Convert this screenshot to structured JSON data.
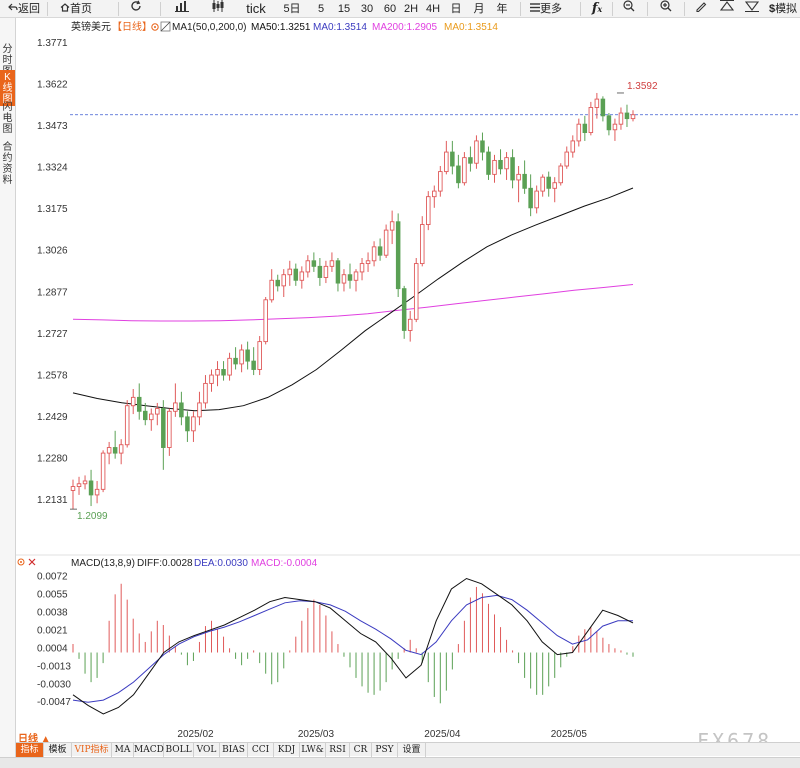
{
  "toolbar": {
    "back": "返回",
    "home": "首页",
    "tick": "tick",
    "periods": [
      "5日",
      "5",
      "15",
      "30",
      "60",
      "2H",
      "4H",
      "日",
      "月",
      "年"
    ],
    "more": "更多",
    "simulate": "模拟"
  },
  "sidebar": {
    "tabs": [
      "分时图",
      "K线图",
      "闪电图",
      "合约资料"
    ]
  },
  "legend": {
    "name": "英镑美元",
    "period": "【日线】",
    "ma_def": "MA1(50,0,200,0)",
    "ma50": "MA50:1.3251",
    "ma0a": "MA0:1.3514",
    "ma200": "MA200:1.2905",
    "ma0b": "MA0:1.3514"
  },
  "macd_legend": {
    "def": "MACD(13,8,9)",
    "diff": "DIFF:0.0028",
    "dea": "DEA:0.0030",
    "macd": "MACD:-0.0004"
  },
  "period_label": "日线 ▲",
  "indicators": [
    "指标",
    "模板",
    "VIP指标",
    "MA",
    "MACD",
    "BOLL",
    "VOL",
    "BIAS",
    "CCI",
    "KDJ",
    "LW&",
    "RSI",
    "CR",
    "PSY",
    "设置"
  ],
  "watermark": "FX678",
  "colors": {
    "up": "#e05a5a",
    "down": "#5aa054",
    "ma50": "#111111",
    "ma200": "#e040e0",
    "dea": "#3b3bc0",
    "accent": "#e9651b"
  },
  "chart_data": [
    {
      "type": "candlestick",
      "title": "英镑美元【日线】",
      "ylim": [
        1.206,
        1.38
      ],
      "yticks": [
        "1.3771",
        "1.3622",
        "1.3473",
        "1.3324",
        "1.3175",
        "1.3026",
        "1.2877",
        "1.2727",
        "1.2578",
        "1.2429",
        "1.2280",
        "1.2131"
      ],
      "xticks": [
        {
          "label": "2025/02",
          "index": 20
        },
        {
          "label": "2025/03",
          "index": 40
        },
        {
          "label": "2025/04",
          "index": 61
        },
        {
          "label": "2025/05",
          "index": 82
        }
      ],
      "annotations": {
        "high": "1.3592",
        "low": "1.2099",
        "high_index": 91,
        "low_index": 0
      },
      "current_price": 1.3514,
      "candles": [
        [
          1.2166,
          1.2205,
          1.2099,
          1.218
        ],
        [
          1.218,
          1.2215,
          1.215,
          1.219
        ],
        [
          1.219,
          1.222,
          1.217,
          1.22
        ],
        [
          1.22,
          1.224,
          1.211,
          1.215
        ],
        [
          1.215,
          1.22,
          1.212,
          1.217
        ],
        [
          1.217,
          1.231,
          1.216,
          1.23
        ],
        [
          1.23,
          1.234,
          1.226,
          1.232
        ],
        [
          1.232,
          1.238,
          1.228,
          1.23
        ],
        [
          1.23,
          1.235,
          1.226,
          1.233
        ],
        [
          1.233,
          1.249,
          1.232,
          1.247
        ],
        [
          1.247,
          1.253,
          1.244,
          1.25
        ],
        [
          1.25,
          1.255,
          1.242,
          1.245
        ],
        [
          1.245,
          1.248,
          1.24,
          1.242
        ],
        [
          1.242,
          1.246,
          1.238,
          1.244
        ],
        [
          1.244,
          1.248,
          1.24,
          1.246
        ],
        [
          1.246,
          1.249,
          1.224,
          1.232
        ],
        [
          1.232,
          1.246,
          1.229,
          1.245
        ],
        [
          1.245,
          1.255,
          1.243,
          1.248
        ],
        [
          1.248,
          1.252,
          1.24,
          1.243
        ],
        [
          1.243,
          1.245,
          1.234,
          1.238
        ],
        [
          1.238,
          1.245,
          1.234,
          1.243
        ],
        [
          1.243,
          1.252,
          1.24,
          1.248
        ],
        [
          1.248,
          1.258,
          1.246,
          1.255
        ],
        [
          1.255,
          1.26,
          1.252,
          1.258
        ],
        [
          1.258,
          1.263,
          1.254,
          1.26
        ],
        [
          1.26,
          1.263,
          1.256,
          1.258
        ],
        [
          1.258,
          1.266,
          1.256,
          1.264
        ],
        [
          1.264,
          1.268,
          1.26,
          1.262
        ],
        [
          1.262,
          1.269,
          1.259,
          1.267
        ],
        [
          1.267,
          1.27,
          1.26,
          1.263
        ],
        [
          1.263,
          1.268,
          1.258,
          1.26
        ],
        [
          1.26,
          1.272,
          1.258,
          1.27
        ],
        [
          1.27,
          1.286,
          1.269,
          1.285
        ],
        [
          1.285,
          1.296,
          1.284,
          1.292
        ],
        [
          1.292,
          1.294,
          1.288,
          1.29
        ],
        [
          1.29,
          1.296,
          1.286,
          1.294
        ],
        [
          1.294,
          1.299,
          1.29,
          1.296
        ],
        [
          1.296,
          1.298,
          1.29,
          1.292
        ],
        [
          1.292,
          1.297,
          1.289,
          1.295
        ],
        [
          1.295,
          1.301,
          1.293,
          1.299
        ],
        [
          1.299,
          1.302,
          1.295,
          1.297
        ],
        [
          1.297,
          1.3,
          1.29,
          1.293
        ],
        [
          1.293,
          1.299,
          1.291,
          1.297
        ],
        [
          1.297,
          1.302,
          1.295,
          1.299
        ],
        [
          1.299,
          1.3,
          1.288,
          1.291
        ],
        [
          1.291,
          1.296,
          1.288,
          1.294
        ],
        [
          1.294,
          1.298,
          1.289,
          1.292
        ],
        [
          1.292,
          1.296,
          1.288,
          1.295
        ],
        [
          1.295,
          1.3,
          1.292,
          1.298
        ],
        [
          1.298,
          1.302,
          1.295,
          1.299
        ],
        [
          1.299,
          1.306,
          1.297,
          1.304
        ],
        [
          1.304,
          1.307,
          1.299,
          1.301
        ],
        [
          1.301,
          1.312,
          1.3,
          1.31
        ],
        [
          1.31,
          1.317,
          1.305,
          1.313
        ],
        [
          1.313,
          1.316,
          1.286,
          1.289
        ],
        [
          1.289,
          1.29,
          1.271,
          1.274
        ],
        [
          1.274,
          1.281,
          1.27,
          1.278
        ],
        [
          1.278,
          1.3,
          1.277,
          1.298
        ],
        [
          1.298,
          1.315,
          1.297,
          1.312
        ],
        [
          1.312,
          1.324,
          1.31,
          1.322
        ],
        [
          1.322,
          1.326,
          1.318,
          1.324
        ],
        [
          1.324,
          1.333,
          1.322,
          1.331
        ],
        [
          1.331,
          1.342,
          1.33,
          1.338
        ],
        [
          1.338,
          1.342,
          1.33,
          1.333
        ],
        [
          1.333,
          1.337,
          1.325,
          1.327
        ],
        [
          1.327,
          1.338,
          1.326,
          1.336
        ],
        [
          1.336,
          1.34,
          1.331,
          1.334
        ],
        [
          1.334,
          1.344,
          1.332,
          1.342
        ],
        [
          1.342,
          1.345,
          1.335,
          1.338
        ],
        [
          1.338,
          1.34,
          1.328,
          1.33
        ],
        [
          1.33,
          1.337,
          1.327,
          1.335
        ],
        [
          1.335,
          1.339,
          1.33,
          1.332
        ],
        [
          1.332,
          1.338,
          1.328,
          1.336
        ],
        [
          1.336,
          1.339,
          1.325,
          1.328
        ],
        [
          1.328,
          1.333,
          1.32,
          1.33
        ],
        [
          1.33,
          1.335,
          1.323,
          1.325
        ],
        [
          1.325,
          1.33,
          1.315,
          1.318
        ],
        [
          1.318,
          1.326,
          1.316,
          1.324
        ],
        [
          1.324,
          1.33,
          1.322,
          1.329
        ],
        [
          1.329,
          1.331,
          1.322,
          1.325
        ],
        [
          1.325,
          1.329,
          1.32,
          1.327
        ],
        [
          1.327,
          1.334,
          1.326,
          1.333
        ],
        [
          1.333,
          1.34,
          1.332,
          1.338
        ],
        [
          1.338,
          1.344,
          1.336,
          1.342
        ],
        [
          1.342,
          1.35,
          1.34,
          1.348
        ],
        [
          1.348,
          1.351,
          1.342,
          1.345
        ],
        [
          1.345,
          1.356,
          1.344,
          1.354
        ],
        [
          1.354,
          1.3592,
          1.35,
          1.357
        ],
        [
          1.357,
          1.358,
          1.349,
          1.351
        ],
        [
          1.351,
          1.352,
          1.344,
          1.346
        ],
        [
          1.346,
          1.35,
          1.342,
          1.348
        ],
        [
          1.348,
          1.354,
          1.346,
          1.352
        ],
        [
          1.352,
          1.355,
          1.347,
          1.35
        ],
        [
          1.35,
          1.353,
          1.349,
          1.3514
        ]
      ],
      "ma50": [
        1.2516,
        1.2496,
        1.2481,
        1.247,
        1.246,
        1.2452,
        1.2456,
        1.247,
        1.25,
        1.2545,
        1.26,
        1.2668,
        1.2739,
        1.28,
        1.2862,
        1.2925,
        1.2985,
        1.304,
        1.3082,
        1.3118,
        1.3152,
        1.3186,
        1.3216,
        1.3251
      ],
      "ma200": [
        1.278,
        1.2778,
        1.2775,
        1.2774,
        1.2774,
        1.2775,
        1.2778,
        1.2782,
        1.2786,
        1.2792,
        1.28,
        1.2812,
        1.2823,
        1.2836,
        1.2848,
        1.286,
        1.2872,
        1.2884,
        1.2894,
        1.2905
      ]
    },
    {
      "type": "macd",
      "title": "MACD(13,8,9)",
      "ylim": [
        -0.006,
        0.0078
      ],
      "yticks": [
        "0.0072",
        "0.0055",
        "0.0038",
        "0.0021",
        "0.0004",
        "-0.0013",
        "-0.0030",
        "-0.0047"
      ],
      "series": [
        {
          "name": "DIFF",
          "values": [
            -0.004,
            -0.005,
            -0.0058,
            -0.0052,
            -0.004,
            -0.002,
            0.0,
            0.001,
            0.0016,
            0.0021,
            0.0026,
            0.0033,
            0.004,
            0.0048,
            0.0052,
            0.005,
            0.0048,
            0.0042,
            0.003,
            0.0018,
            0.001,
            -0.0005,
            -0.0024,
            -0.0012,
            0.003,
            0.006,
            0.007,
            0.0065,
            0.0055,
            0.0045,
            0.003,
            0.001,
            -0.0002,
            0.0,
            0.002,
            0.004,
            0.0035,
            0.0028
          ]
        },
        {
          "name": "DEA",
          "values": [
            -0.0045,
            -0.0047,
            -0.0045,
            -0.0038,
            -0.0028,
            -0.0015,
            -0.0002,
            0.0008,
            0.0015,
            0.002,
            0.0024,
            0.0029,
            0.0035,
            0.0041,
            0.0047,
            0.0049,
            0.0048,
            0.0045,
            0.0039,
            0.003,
            0.0022,
            0.0013,
            0.0002,
            -0.0002,
            0.001,
            0.003,
            0.0045,
            0.0052,
            0.0054,
            0.005,
            0.004,
            0.0028,
            0.0016,
            0.0008,
            0.0012,
            0.0025,
            0.003,
            0.003
          ]
        },
        {
          "name": "MACD",
          "values": [
            0.0008,
            -0.0006,
            -0.002,
            -0.0028,
            -0.0024,
            -0.001,
            0.003,
            0.0055,
            0.0065,
            0.005,
            0.0032,
            0.0018,
            0.001,
            0.002,
            0.003,
            0.0026,
            0.0016,
            0.0006,
            -0.0002,
            -0.0012,
            -0.0008,
            0.001,
            0.0025,
            0.003,
            0.0022,
            0.0015,
            0.0004,
            -0.0006,
            -0.0012,
            -0.0006,
            0.0002,
            -0.001,
            -0.002,
            -0.003,
            -0.0028,
            -0.0015,
            0.0002,
            0.0015,
            0.003,
            0.0042,
            0.005,
            0.0045,
            0.0035,
            0.002,
            0.0008,
            -0.0004,
            -0.0014,
            -0.0024,
            -0.0032,
            -0.0038,
            -0.004,
            -0.0036,
            -0.0028,
            -0.0016,
            -0.0006,
            0.0004,
            0.0012,
            0.0004,
            -0.001,
            -0.0028,
            -0.0042,
            -0.0048,
            -0.0036,
            -0.0016,
            0.0008,
            0.003,
            0.0052,
            0.0062,
            0.0056,
            0.0046,
            0.0036,
            0.0024,
            0.0012,
            0.0002,
            -0.001,
            -0.0024,
            -0.0034,
            -0.004,
            -0.004,
            -0.0032,
            -0.0024,
            -0.0014,
            -0.0004,
            0.0006,
            0.0016,
            0.0022,
            0.0024,
            0.002,
            0.0014,
            0.0008,
            0.0004,
            0.0002,
            -0.0002,
            -0.0004
          ]
        }
      ]
    }
  ]
}
